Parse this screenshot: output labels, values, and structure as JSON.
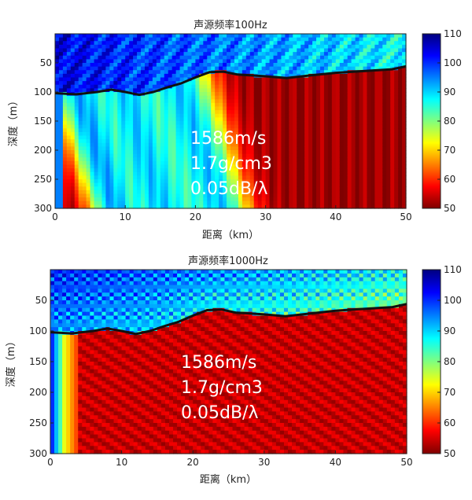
{
  "palette": [
    "#00007f",
    "#0000ff",
    "#007fff",
    "#00ffff",
    "#7fff7f",
    "#ffff00",
    "#ff7f00",
    "#ff0000",
    "#7f0000"
  ],
  "chart_data": [
    {
      "type": "heatmap",
      "title": "声源频率100Hz",
      "xlabel": "距离（km）",
      "ylabel": "深度（m）",
      "xlim": [
        0,
        50
      ],
      "ylim": [
        0,
        300
      ],
      "x_ticks": [
        "0",
        "10",
        "20",
        "30",
        "40",
        "50"
      ],
      "x_tick_values": [
        0,
        10,
        20,
        30,
        40,
        50
      ],
      "y_ticks": [
        "50",
        "100",
        "150",
        "200",
        "250",
        "300"
      ],
      "y_tick_values": [
        50,
        100,
        150,
        200,
        250,
        300
      ],
      "colorbar": {
        "min": 50,
        "max": 110,
        "ticks": [
          "50",
          "60",
          "70",
          "80",
          "90",
          "100",
          "110"
        ]
      },
      "bottom_boundary": {
        "x": [
          0,
          3,
          6,
          8,
          10,
          12,
          14,
          16,
          18,
          20,
          22,
          24,
          26,
          30,
          33,
          36,
          40,
          44,
          48,
          50
        ],
        "y": [
          102,
          104,
          100,
          96,
          100,
          105,
          100,
          92,
          85,
          75,
          66,
          65,
          70,
          73,
          76,
          72,
          67,
          64,
          61,
          56
        ]
      },
      "annotations": [
        "1586m/s",
        "1.7g/cm3",
        "0.05dB/λ"
      ]
    },
    {
      "type": "heatmap",
      "title": "声源频率1000Hz",
      "xlabel": "距离（km）",
      "ylabel": "深度（m）",
      "xlim": [
        0,
        50
      ],
      "ylim": [
        0,
        300
      ],
      "x_ticks": [
        "0",
        "10",
        "20",
        "30",
        "40",
        "50"
      ],
      "x_tick_values": [
        0,
        10,
        20,
        30,
        40,
        50
      ],
      "y_ticks": [
        "50",
        "100",
        "150",
        "200",
        "250",
        "300"
      ],
      "y_tick_values": [
        50,
        100,
        150,
        200,
        250,
        300
      ],
      "colorbar": {
        "min": 50,
        "max": 110,
        "ticks": [
          "50",
          "60",
          "70",
          "80",
          "90",
          "100",
          "110"
        ]
      },
      "bottom_boundary": {
        "x": [
          0,
          3,
          6,
          8,
          10,
          12,
          14,
          16,
          18,
          20,
          22,
          24,
          26,
          30,
          33,
          36,
          40,
          44,
          48,
          50
        ],
        "y": [
          102,
          104,
          100,
          96,
          100,
          105,
          100,
          92,
          85,
          75,
          66,
          65,
          70,
          73,
          76,
          72,
          67,
          64,
          61,
          56
        ]
      },
      "annotations": [
        "1586m/s",
        "1.7g/cm3",
        "0.05dB/λ"
      ]
    }
  ]
}
